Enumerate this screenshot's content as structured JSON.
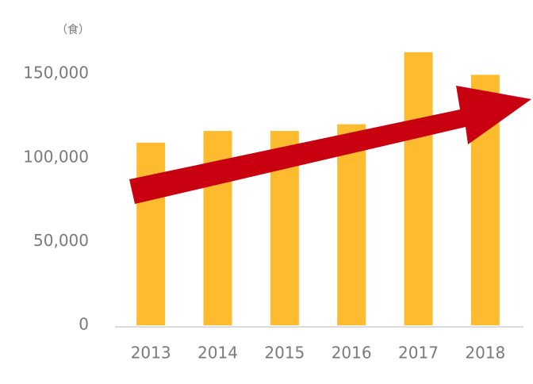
{
  "chart_data": {
    "type": "bar",
    "y_unit": "（食）",
    "categories": [
      "2013",
      "2014",
      "2015",
      "2016",
      "2017",
      "2018"
    ],
    "values": [
      109000,
      116000,
      116000,
      120000,
      163000,
      149500
    ],
    "color": "#fdbb30",
    "ylim": [
      0,
      170000
    ],
    "yticks": [
      0,
      {
        "value": 50000,
        "label": "50,000"
      },
      {
        "value": 100000,
        "label": "100,000"
      },
      {
        "value": 150000,
        "label": "150,000"
      }
    ],
    "grid": false
  }
}
